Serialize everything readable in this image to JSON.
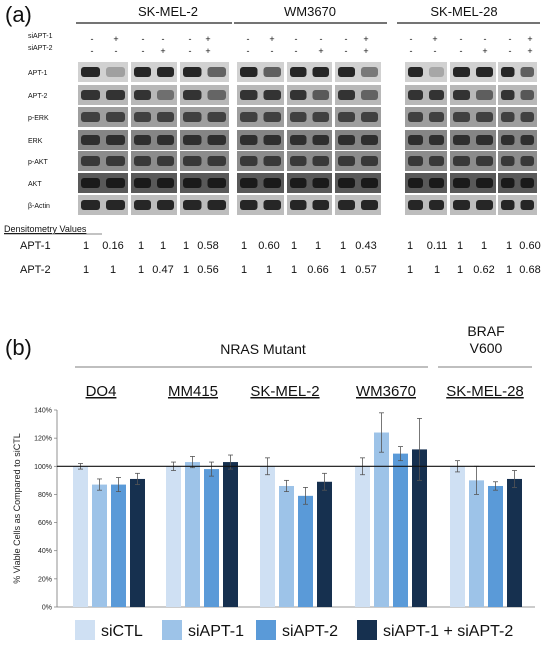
{
  "panel_a": {
    "letter": "(a)",
    "cell_lines": [
      "SK-MEL-2",
      "WM3670",
      "SK-MEL-28"
    ],
    "treatment_rows": [
      {
        "label": "siAPT-1",
        "signs": [
          "-",
          "+",
          "-",
          "-",
          "-",
          "+"
        ]
      },
      {
        "label": "siAPT-2",
        "signs": [
          "-",
          "-",
          "-",
          "+",
          "-",
          "+"
        ]
      }
    ],
    "blot_rows": [
      "APT-1",
      "APT-2",
      "p-ERK",
      "ERK",
      "p-AKT",
      "AKT",
      "β-Actin"
    ],
    "densitometry": {
      "heading": "Densitometry Values",
      "rows": [
        {
          "label": "APT-1",
          "values": [
            [
              "1",
              "0.16",
              "1",
              "1",
              "1",
              "0.58"
            ],
            [
              "1",
              "0.60",
              "1",
              "1",
              "1",
              "0.43"
            ],
            [
              "1",
              "0.11",
              "1",
              "1",
              "1",
              "0.60"
            ]
          ]
        },
        {
          "label": "APT-2",
          "values": [
            [
              "1",
              "1",
              "1",
              "0.47",
              "1",
              "0.56"
            ],
            [
              "1",
              "1",
              "1",
              "0.66",
              "1",
              "0.57"
            ],
            [
              "1",
              "1",
              "1",
              "0.62",
              "1",
              "0.68"
            ]
          ]
        }
      ]
    }
  },
  "chart_data": {
    "type": "bar",
    "panel_letter": "(b)",
    "title": "",
    "xlabel": "",
    "ylabel": "% Viable Cells as Compared to siCTL",
    "ylim": [
      0,
      140
    ],
    "y_ticks": [
      "0%",
      "20%",
      "40%",
      "60%",
      "80%",
      "100%",
      "120%",
      "140%"
    ],
    "reference_line": 100,
    "group_headers": [
      {
        "label": "NRAS Mutant",
        "covers": [
          "DO4",
          "MM415",
          "SK-MEL-2",
          "WM3670"
        ]
      },
      {
        "label": "BRAF V600",
        "lines": [
          "BRAF",
          "V600"
        ],
        "covers": [
          "SK-MEL-28"
        ]
      }
    ],
    "categories": [
      "DO4",
      "MM415",
      "SK-MEL-2",
      "WM3670",
      "SK-MEL-28"
    ],
    "series": [
      {
        "name": "siCTL",
        "color": "#cfe0f3",
        "values": [
          100,
          100,
          100,
          100,
          100
        ],
        "errors": [
          2,
          3,
          6,
          6,
          4
        ]
      },
      {
        "name": "siAPT-1",
        "color": "#9dc3e8",
        "values": [
          87,
          103,
          86,
          124,
          90
        ],
        "errors": [
          4,
          4,
          4,
          14,
          10
        ]
      },
      {
        "name": "siAPT-2",
        "color": "#5a9ad8",
        "values": [
          87,
          98,
          79,
          109,
          86
        ],
        "errors": [
          5,
          5,
          6,
          5,
          3
        ]
      },
      {
        "name": "siAPT-1 + siAPT-2",
        "color": "#16304f",
        "values": [
          91,
          103,
          89,
          112,
          91
        ],
        "errors": [
          4,
          5,
          6,
          22,
          6
        ]
      }
    ],
    "legend_position": "bottom"
  }
}
